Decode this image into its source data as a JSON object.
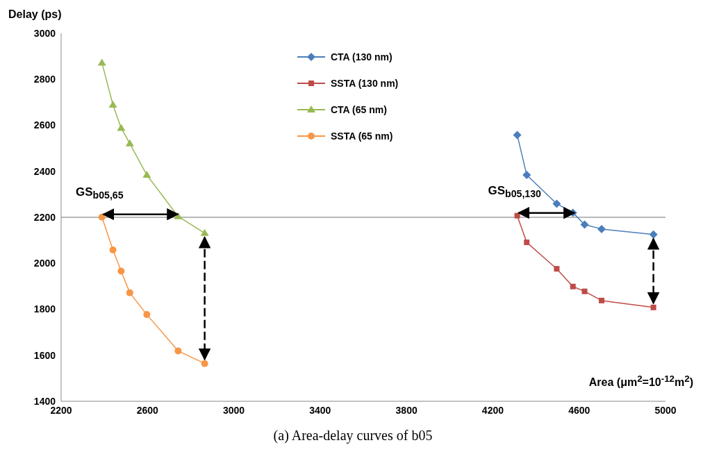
{
  "chart_data": {
    "type": "line",
    "xlabel": "Area (μm$^{2}$=10$^{-12}$m$^{2}$)",
    "ylabel": "Delay (ps)",
    "xlim": [
      2200,
      5000
    ],
    "xticks": [
      2200,
      2600,
      3000,
      3400,
      3800,
      4200,
      4600,
      5000
    ],
    "ylim": [
      1400,
      3000
    ],
    "yticks": [
      1400,
      1600,
      1800,
      2000,
      2200,
      2400,
      2600,
      2800,
      3000
    ],
    "grid": false,
    "legend": "top",
    "line_style": "solid",
    "series": [
      {
        "name": "CTA (130 nm)",
        "color": "#4a7ebb",
        "marker": "diamond",
        "x": [
          4313,
          4357,
          4496,
          4571,
          4625,
          4704,
          4944
        ],
        "values": [
          2558,
          2384,
          2259,
          2220,
          2168,
          2149,
          2125
        ]
      },
      {
        "name": "SSTA (130 nm)",
        "color": "#be4b48",
        "marker": "square",
        "x": [
          4313,
          4357,
          4496,
          4571,
          4625,
          4704,
          4944
        ],
        "values": [
          2207,
          2091,
          1976,
          1899,
          1878,
          1838,
          1808
        ]
      },
      {
        "name": "CTA (65 nm)",
        "color": "#98b954",
        "marker": "triangle",
        "x": [
          2389,
          2440,
          2478,
          2518,
          2597,
          2742,
          2865
        ],
        "values": [
          2872,
          2689,
          2588,
          2521,
          2384,
          2204,
          2131
        ]
      },
      {
        "name": "SSTA (65 nm)",
        "color": "#f79646",
        "marker": "circle",
        "x": [
          2389,
          2440,
          2478,
          2518,
          2597,
          2742,
          2865
        ],
        "values": [
          2201,
          2058,
          1966,
          1872,
          1777,
          1619,
          1564
        ]
      }
    ],
    "ref_lines": [
      {
        "axis": "y",
        "value": 2200,
        "color": "#a0a0a0"
      }
    ],
    "annotations": [
      {
        "text": "GS$_{b05,65}$",
        "x": 2389,
        "y": 2201
      },
      {
        "text": "GS$_{b05,130}$",
        "x": 4313,
        "y": 2207
      },
      "(a) Area-delay curves of b05"
    ]
  }
}
